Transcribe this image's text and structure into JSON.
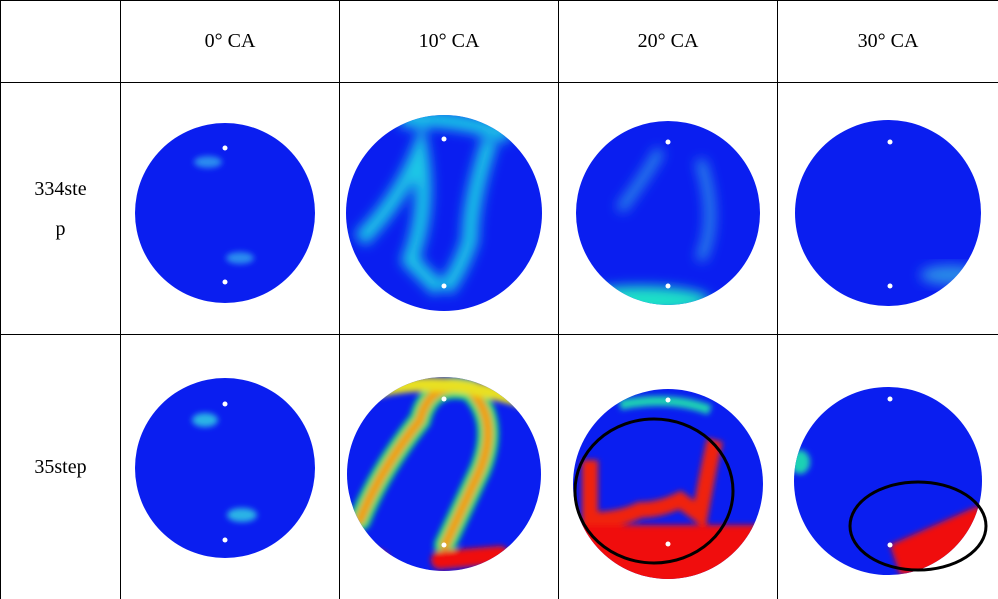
{
  "table": {
    "columns": [
      "0° CA",
      "10° CA",
      "20° CA",
      "30° CA"
    ],
    "rows": [
      {
        "label": "334step"
      },
      {
        "label": "35step"
      }
    ]
  }
}
